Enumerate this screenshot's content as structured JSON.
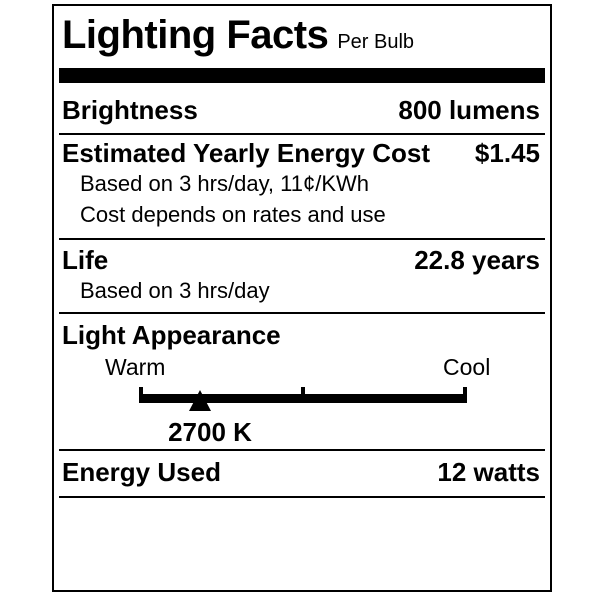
{
  "label": {
    "title": "Lighting Facts",
    "subtitle": "Per Bulb",
    "rows": {
      "brightness": {
        "name": "Brightness",
        "value": "800 lumens"
      },
      "energy_cost": {
        "name": "Estimated Yearly Energy Cost",
        "value": "$1.45",
        "notes": [
          "Based on 3 hrs/day, 11¢/KWh",
          "Cost depends on rates and use"
        ]
      },
      "life": {
        "name": "Life",
        "value": "22.8 years",
        "notes": [
          "Based on 3 hrs/day"
        ]
      },
      "light_appearance": {
        "name": "Light Appearance",
        "scale_left_label": "Warm",
        "scale_right_label": "Cool",
        "marker_value": "2700 K",
        "marker_position_pct": 18.6
      },
      "energy_used": {
        "name": "Energy Used",
        "value": "12 watts"
      }
    },
    "colors": {
      "ink": "#000000",
      "background": "#ffffff"
    }
  }
}
